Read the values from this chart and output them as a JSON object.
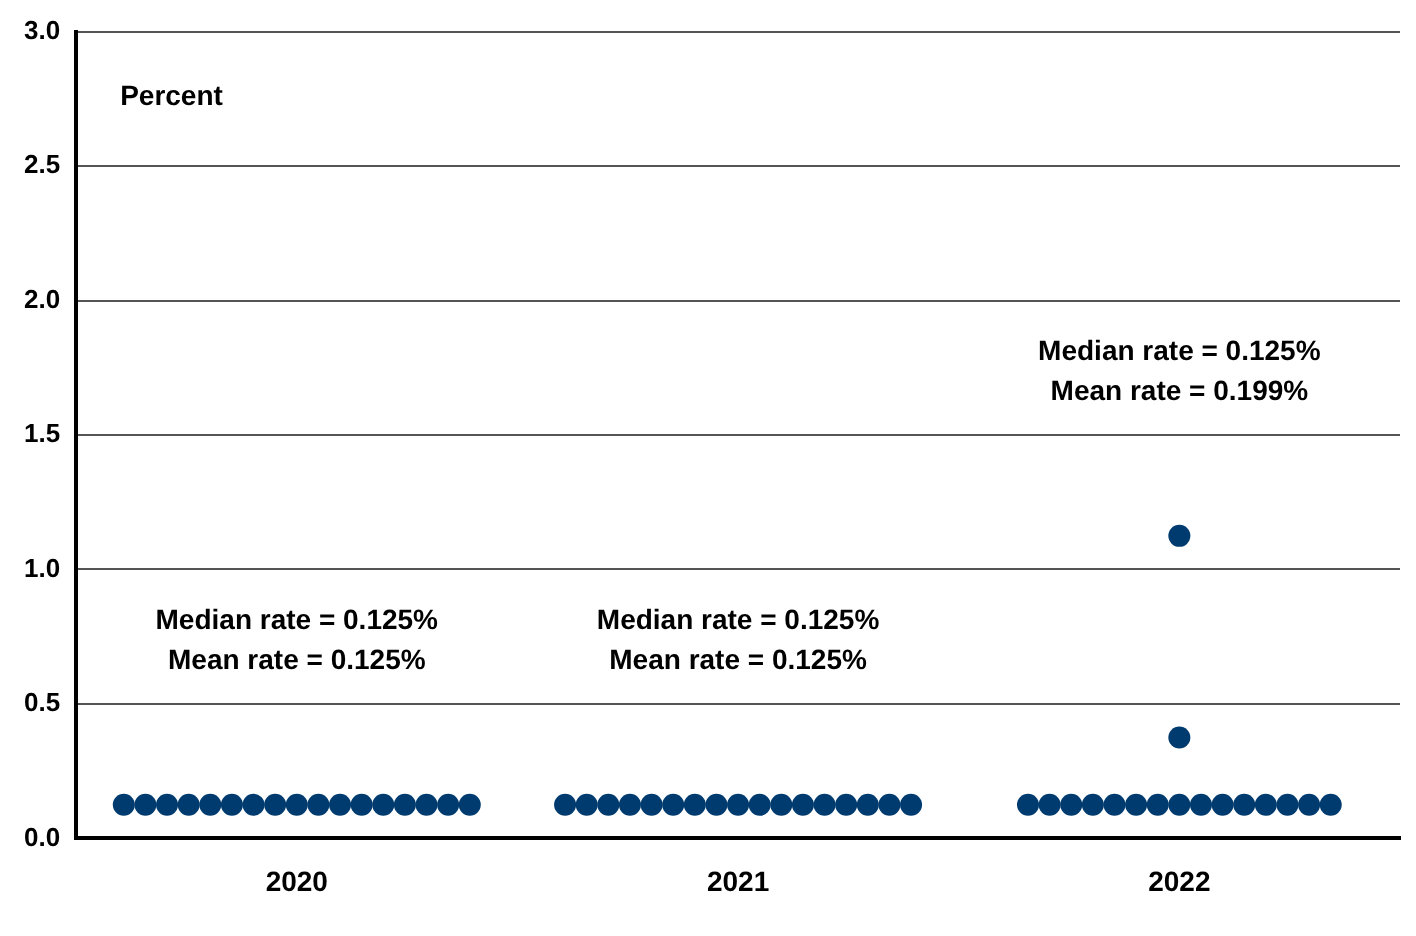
{
  "chart_data": {
    "type": "scatter",
    "ylabel": "Percent",
    "categories": [
      "2020",
      "2021",
      "2022"
    ],
    "series": [
      {
        "color": "#003b6f",
        "values": [
          0.125,
          0.125,
          0.125
        ]
      },
      {
        "color": "#003b6f",
        "values": [
          0.125,
          0.125,
          0.125
        ]
      },
      {
        "color": "#003b6f",
        "values": [
          0.125,
          0.125,
          0.125
        ]
      },
      {
        "color": "#003b6f",
        "values": [
          0.125,
          0.125,
          0.125
        ]
      },
      {
        "color": "#003b6f",
        "values": [
          0.125,
          0.125,
          0.125
        ]
      },
      {
        "color": "#003b6f",
        "values": [
          0.125,
          0.125,
          0.125
        ]
      },
      {
        "color": "#003b6f",
        "values": [
          0.125,
          0.125,
          0.125
        ]
      },
      {
        "color": "#003b6f",
        "values": [
          0.125,
          0.125,
          0.125
        ]
      },
      {
        "color": "#003b6f",
        "values": [
          0.125,
          0.125,
          0.125
        ]
      },
      {
        "color": "#003b6f",
        "values": [
          0.125,
          0.125,
          0.125
        ]
      },
      {
        "color": "#003b6f",
        "values": [
          0.125,
          0.125,
          0.125
        ]
      },
      {
        "color": "#003b6f",
        "values": [
          0.125,
          0.125,
          0.125
        ]
      },
      {
        "color": "#003b6f",
        "values": [
          0.125,
          0.125,
          0.125
        ]
      },
      {
        "color": "#003b6f",
        "values": [
          0.125,
          0.125,
          0.125
        ]
      },
      {
        "color": "#003b6f",
        "values": [
          0.125,
          0.125,
          0.125
        ]
      },
      {
        "color": "#003b6f",
        "values": [
          0.125,
          0.125,
          0.375
        ]
      },
      {
        "color": "#003b6f",
        "values": [
          0.125,
          0.125,
          1.125
        ]
      }
    ],
    "ylim": [
      0,
      3
    ],
    "yticks": [
      {
        "value": 0,
        "label": "0.0"
      },
      {
        "value": 0.5,
        "label": "0.5"
      },
      {
        "value": 1,
        "label": "1.0"
      },
      {
        "value": 1.5,
        "label": "1.5"
      },
      {
        "value": 2,
        "label": "2.0"
      },
      {
        "value": 2.5,
        "label": "2.5"
      },
      {
        "value": 3,
        "label": "3.0"
      }
    ],
    "grid": "y",
    "marker": "circle",
    "legend": false,
    "annotations": [
      "Median rate = 0.125%\nMean rate = 0.125%",
      "Median rate = 0.125%\nMean rate = 0.125%",
      "Median rate = 0.125%\nMean rate = 0.199%"
    ]
  }
}
